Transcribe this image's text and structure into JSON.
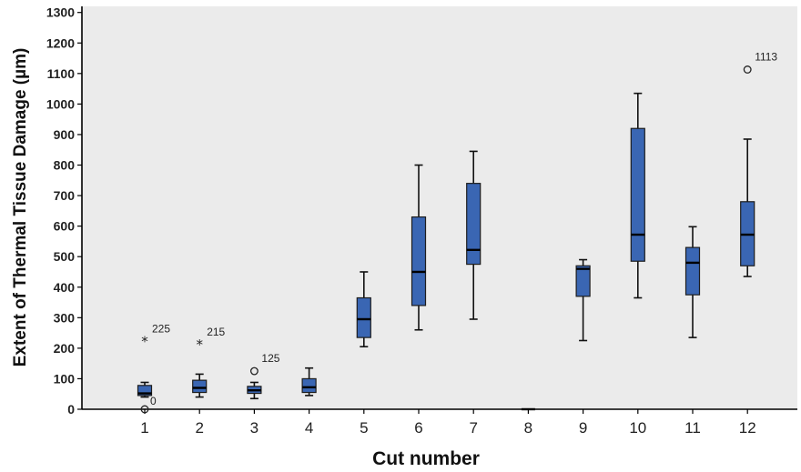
{
  "chart_data": {
    "type": "boxplot",
    "title": "",
    "xlabel": "Cut number",
    "ylabel": "Extent of Thermal Tissue Damage (µm)",
    "ylim": [
      0,
      1320
    ],
    "yticks": [
      0,
      100,
      200,
      300,
      400,
      500,
      600,
      700,
      800,
      900,
      1000,
      1100,
      1200,
      1300
    ],
    "categories": [
      "1",
      "2",
      "3",
      "4",
      "5",
      "6",
      "7",
      "8",
      "9",
      "10",
      "11",
      "12"
    ],
    "boxes": [
      {
        "category": "1",
        "min": 40,
        "q1": 45,
        "median": 52,
        "q3": 78,
        "max": 88,
        "outliers": [
          {
            "value": 225,
            "marker": "star",
            "label": "225"
          },
          {
            "value": 0,
            "marker": "circle",
            "label": "0"
          }
        ]
      },
      {
        "category": "2",
        "min": 40,
        "q1": 55,
        "median": 70,
        "q3": 95,
        "max": 115,
        "outliers": [
          {
            "value": 215,
            "marker": "star",
            "label": "215"
          }
        ]
      },
      {
        "category": "3",
        "min": 35,
        "q1": 52,
        "median": 62,
        "q3": 75,
        "max": 88,
        "outliers": [
          {
            "value": 125,
            "marker": "circle",
            "label": "125"
          }
        ]
      },
      {
        "category": "4",
        "min": 45,
        "q1": 55,
        "median": 72,
        "q3": 100,
        "max": 135,
        "outliers": []
      },
      {
        "category": "5",
        "min": 205,
        "q1": 235,
        "median": 295,
        "q3": 365,
        "max": 450,
        "outliers": []
      },
      {
        "category": "6",
        "min": 260,
        "q1": 340,
        "median": 450,
        "q3": 630,
        "max": 800,
        "outliers": []
      },
      {
        "category": "7",
        "min": 295,
        "q1": 475,
        "median": 522,
        "q3": 740,
        "max": 845,
        "outliers": []
      },
      {
        "category": "8",
        "min": 0,
        "q1": 0,
        "median": 0,
        "q3": 0,
        "max": 0,
        "outliers": []
      },
      {
        "category": "9",
        "min": 225,
        "q1": 370,
        "median": 460,
        "q3": 470,
        "max": 490,
        "outliers": []
      },
      {
        "category": "10",
        "min": 365,
        "q1": 485,
        "median": 572,
        "q3": 920,
        "max": 1035,
        "outliers": []
      },
      {
        "category": "11",
        "min": 235,
        "q1": 375,
        "median": 480,
        "q3": 530,
        "max": 598,
        "outliers": []
      },
      {
        "category": "12",
        "min": 435,
        "q1": 470,
        "median": 572,
        "q3": 680,
        "max": 885,
        "outliers": [
          {
            "value": 1113,
            "marker": "circle",
            "label": "1113"
          }
        ]
      }
    ],
    "colors": {
      "box_fill": "#3a66b3",
      "plot_background": "#ebebeb"
    },
    "grid": false,
    "legend": "none"
  }
}
